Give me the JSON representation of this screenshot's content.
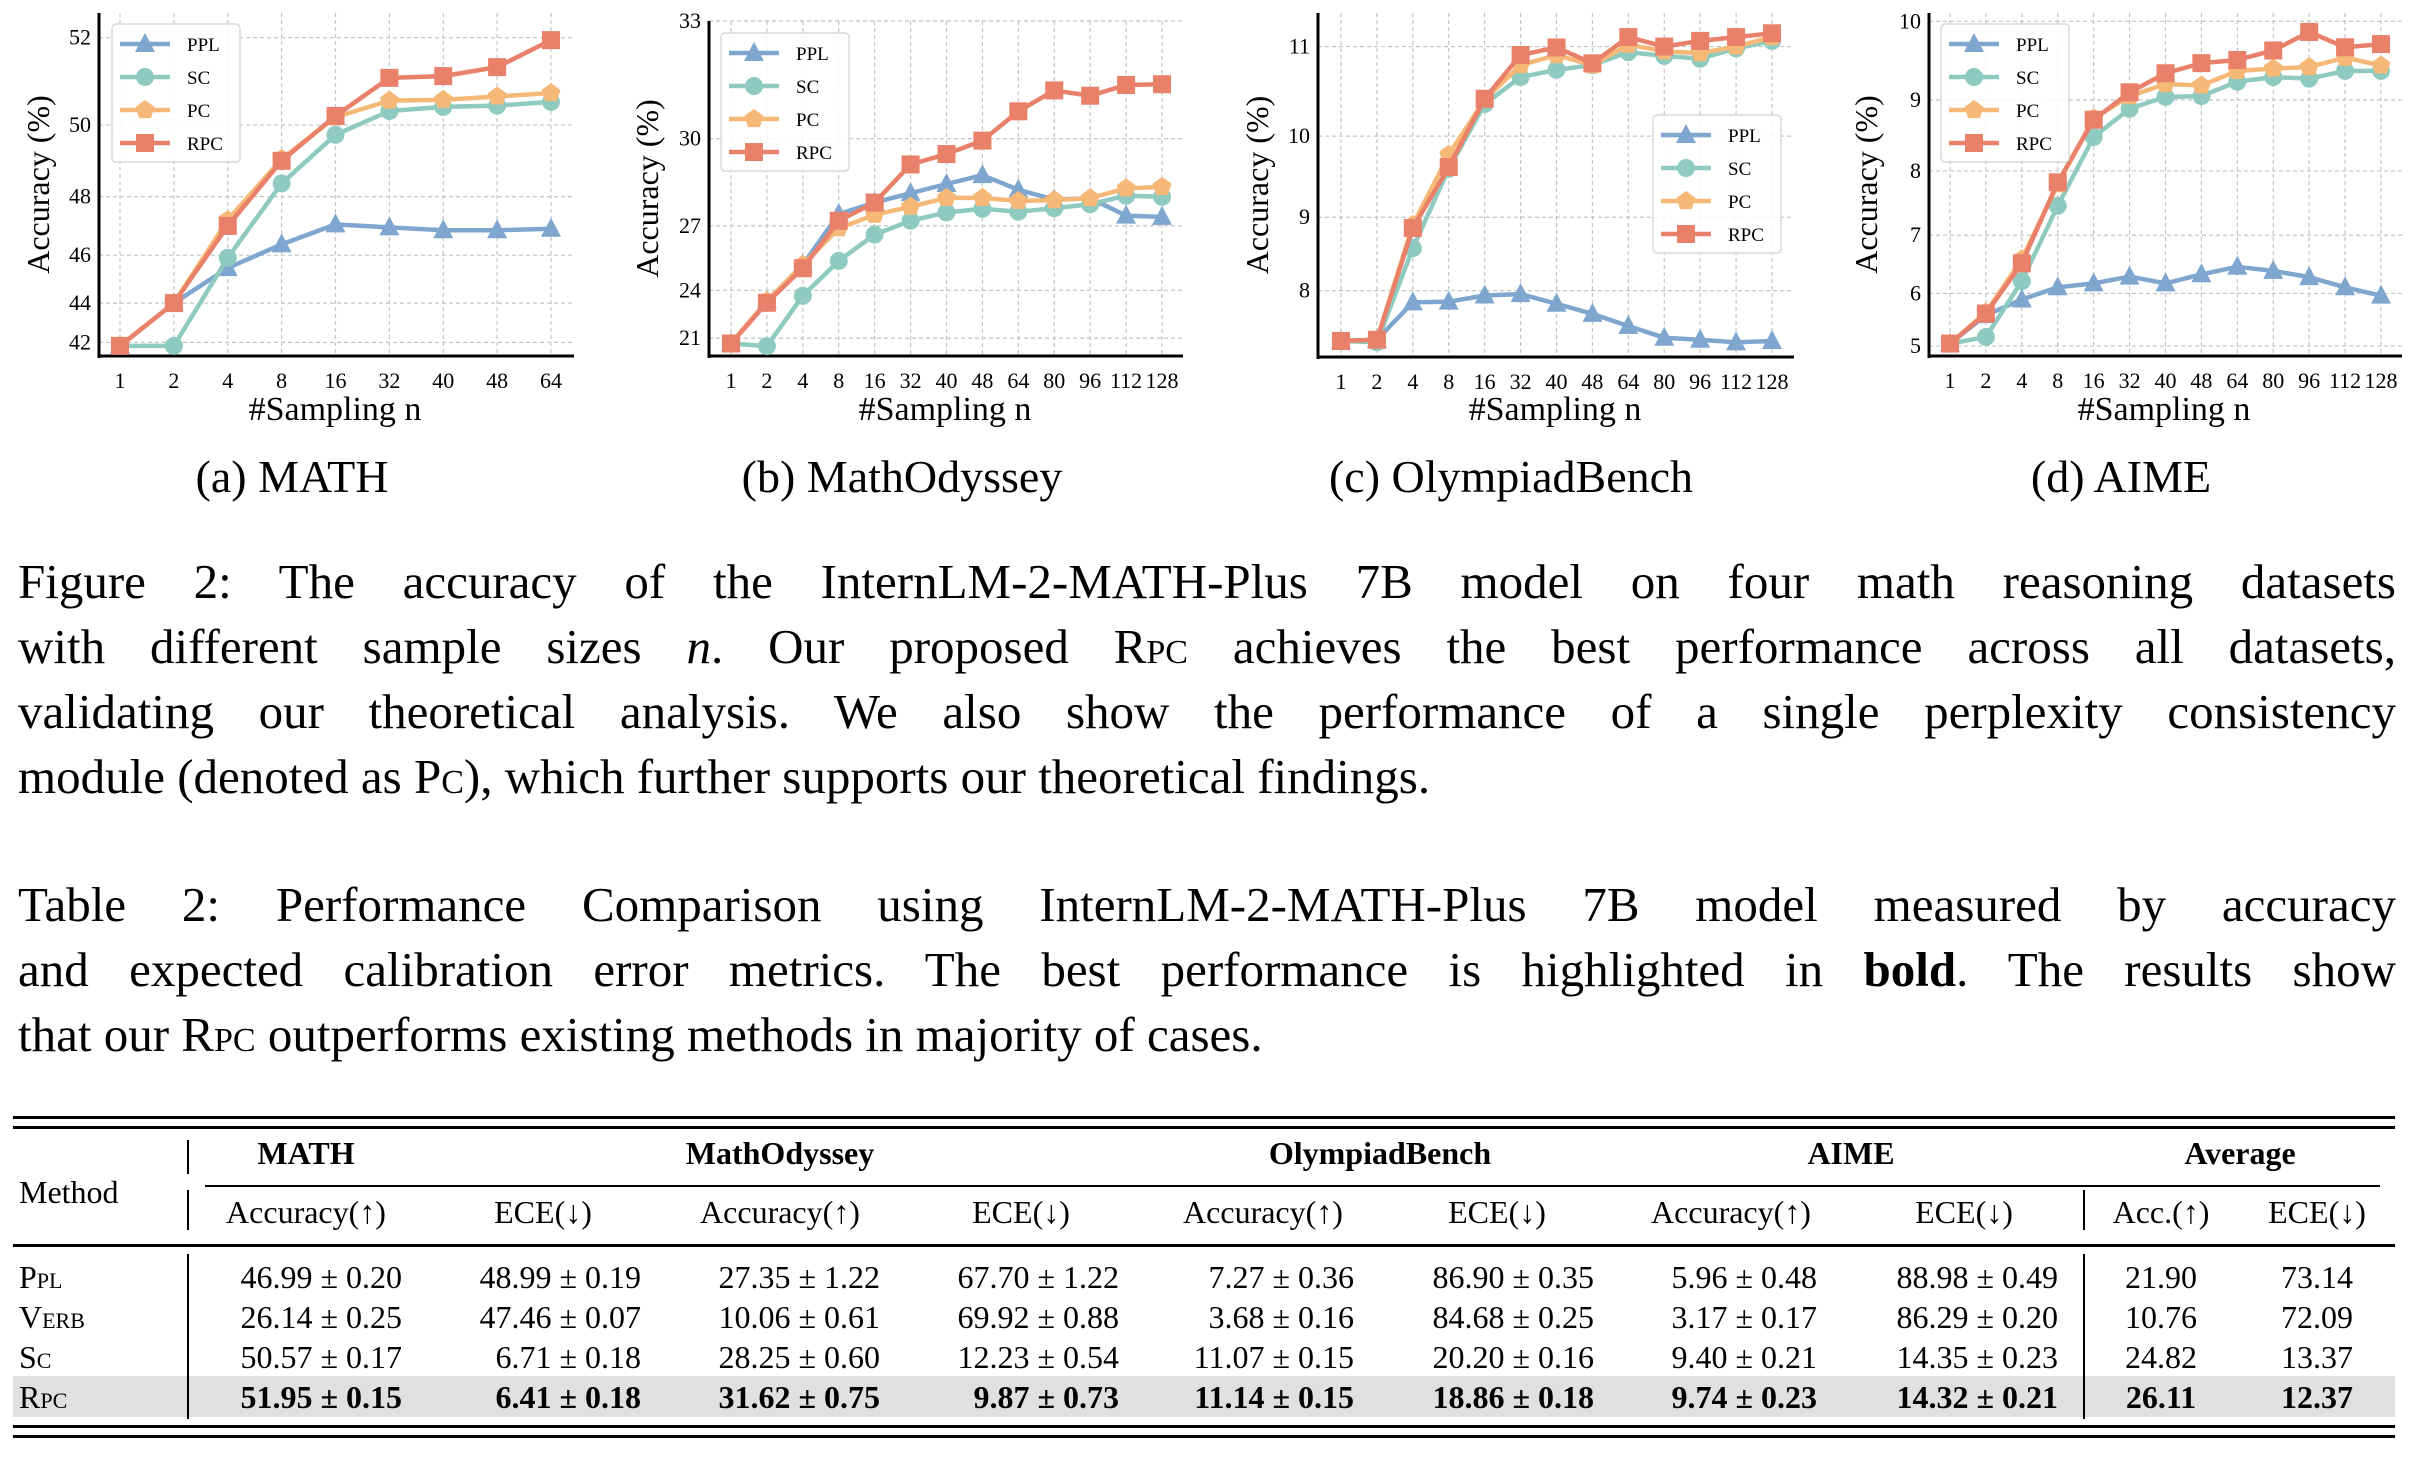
{
  "chart_data": [
    {
      "type": "line",
      "caption": "(a) MATH",
      "xlabel": "#Sampling n",
      "ylabel": "Accuracy (%)",
      "categories": [
        "1",
        "2",
        "4",
        "8",
        "16",
        "32",
        "40",
        "48",
        "64"
      ],
      "ylim": [
        41.2,
        52.5
      ],
      "yticks": [
        42,
        44,
        46,
        48,
        50,
        52
      ],
      "y_scale": "nonlinear (expanding toward top)",
      "grid": true,
      "legend": "top-left",
      "series": [
        {
          "name": "PPL",
          "marker": "triangle",
          "color": "#7fa6ce",
          "values": [
            41.8,
            44.0,
            45.5,
            46.4,
            47.1,
            47.0,
            46.9,
            46.9,
            46.95
          ]
        },
        {
          "name": "SC",
          "marker": "circle",
          "color": "#8ecac0",
          "values": [
            41.8,
            41.8,
            45.9,
            48.4,
            49.75,
            50.35,
            50.45,
            50.48,
            50.57
          ]
        },
        {
          "name": "PC",
          "marker": "pentagon",
          "color": "#f6b877",
          "values": [
            41.8,
            44.0,
            47.25,
            49.1,
            50.2,
            50.6,
            50.62,
            50.7,
            50.78
          ]
        },
        {
          "name": "RPC",
          "marker": "square",
          "color": "#e9806a",
          "values": [
            41.8,
            44.0,
            47.05,
            49.05,
            50.23,
            51.13,
            51.17,
            51.37,
            51.95
          ]
        }
      ]
    },
    {
      "type": "line",
      "caption": "(b) MathOdyssey",
      "xlabel": "#Sampling n",
      "ylabel": "Accuracy (%)",
      "categories": [
        "1",
        "2",
        "4",
        "8",
        "16",
        "32",
        "40",
        "48",
        "64",
        "80",
        "96",
        "112",
        "128"
      ],
      "ylim": [
        19.6,
        33
      ],
      "yticks": [
        21,
        24,
        27,
        30,
        33
      ],
      "y_scale": "nonlinear (expanding toward top)",
      "grid": true,
      "legend": "top-left",
      "series": [
        {
          "name": "PPL",
          "marker": "triangle",
          "color": "#7fa6ce",
          "values": [
            20.6,
            23.4,
            25.3,
            27.46,
            27.89,
            28.23,
            28.55,
            28.85,
            28.35,
            28.0,
            28.05,
            27.4,
            27.35
          ]
        },
        {
          "name": "SC",
          "marker": "circle",
          "color": "#8ecac0",
          "values": [
            20.6,
            20.4,
            23.7,
            25.48,
            26.64,
            27.2,
            27.52,
            27.66,
            27.55,
            27.68,
            27.83,
            28.14,
            28.1
          ]
        },
        {
          "name": "PC",
          "marker": "pentagon",
          "color": "#f6b877",
          "values": [
            20.6,
            23.4,
            25.3,
            26.9,
            27.43,
            27.74,
            28.06,
            28.06,
            27.95,
            27.98,
            28.05,
            28.4,
            28.45
          ]
        },
        {
          "name": "RPC",
          "marker": "square",
          "color": "#e9806a",
          "values": [
            20.6,
            23.3,
            25.13,
            27.2,
            27.89,
            29.2,
            29.53,
            29.94,
            30.78,
            31.34,
            31.2,
            31.48,
            31.5
          ]
        }
      ]
    },
    {
      "type": "line",
      "caption": "(c) OlympiadBench",
      "xlabel": "#Sampling n",
      "ylabel": "Accuracy (%)",
      "categories": [
        "1",
        "2",
        "4",
        "8",
        "16",
        "32",
        "40",
        "48",
        "64",
        "80",
        "96",
        "112",
        "128"
      ],
      "ylim": [
        7.0,
        11.35
      ],
      "yticks": [
        8,
        9,
        10,
        11
      ],
      "y_scale": "nonlinear (expanding toward top)",
      "grid": true,
      "legend": "center-right",
      "series": [
        {
          "name": "PPL",
          "marker": "triangle",
          "color": "#7fa6ce",
          "values": [
            7.25,
            7.27,
            7.83,
            7.84,
            7.93,
            7.95,
            7.81,
            7.66,
            7.48,
            7.3,
            7.27,
            7.23,
            7.25
          ]
        },
        {
          "name": "SC",
          "marker": "circle",
          "color": "#8ecac0",
          "values": [
            7.25,
            7.23,
            8.59,
            9.61,
            10.37,
            10.67,
            10.75,
            10.8,
            10.94,
            10.9,
            10.87,
            10.98,
            11.06
          ]
        },
        {
          "name": "PC",
          "marker": "pentagon",
          "color": "#f6b877",
          "values": [
            7.25,
            7.27,
            8.9,
            9.78,
            10.42,
            10.8,
            10.91,
            10.8,
            11.02,
            10.95,
            10.93,
            11.0,
            11.1
          ]
        },
        {
          "name": "RPC",
          "marker": "square",
          "color": "#e9806a",
          "values": [
            7.25,
            7.27,
            8.86,
            9.63,
            10.43,
            10.91,
            10.99,
            10.82,
            11.1,
            11.0,
            11.06,
            11.1,
            11.14
          ]
        }
      ]
    },
    {
      "type": "line",
      "caption": "(d) AIME",
      "xlabel": "#Sampling n",
      "ylabel": "Accuracy (%)",
      "categories": [
        "1",
        "2",
        "4",
        "8",
        "16",
        "32",
        "40",
        "48",
        "64",
        "80",
        "96",
        "112",
        "128"
      ],
      "ylim": [
        4.8,
        10.1
      ],
      "yticks": [
        5,
        6,
        7,
        8,
        9,
        10
      ],
      "y_scale": "nonlinear (expanding toward top)",
      "grid": true,
      "legend": "top-left",
      "series": [
        {
          "name": "PPL",
          "marker": "triangle",
          "color": "#7fa6ce",
          "values": [
            5.05,
            5.6,
            5.89,
            6.11,
            6.18,
            6.3,
            6.18,
            6.34,
            6.47,
            6.4,
            6.29,
            6.11,
            5.96
          ]
        },
        {
          "name": "SC",
          "marker": "circle",
          "color": "#8ecac0",
          "values": [
            5.05,
            5.18,
            6.22,
            7.47,
            8.49,
            8.88,
            9.04,
            9.05,
            9.24,
            9.3,
            9.28,
            9.38,
            9.38
          ]
        },
        {
          "name": "PC",
          "marker": "pentagon",
          "color": "#f6b877",
          "values": [
            5.05,
            5.65,
            6.6,
            7.8,
            8.75,
            9.05,
            9.21,
            9.19,
            9.38,
            9.41,
            9.43,
            9.55,
            9.45
          ]
        },
        {
          "name": "RPC",
          "marker": "square",
          "color": "#e9806a",
          "values": [
            5.05,
            5.63,
            6.53,
            7.83,
            8.73,
            9.1,
            9.35,
            9.48,
            9.52,
            9.64,
            9.87,
            9.68,
            9.72
          ]
        }
      ]
    }
  ],
  "figure_caption": [
    [
      {
        "t": "Figure 2: The accuracy of the InternLM-2-MATH-Plus 7B model on four math reasoning datasets"
      }
    ],
    [
      {
        "t": "with different sample sizes "
      },
      {
        "t": "n",
        "s": "it"
      },
      {
        "t": ". Our proposed "
      },
      {
        "t": "Rpc",
        "s": "sc"
      },
      {
        "t": " achieves the best performance across all datasets,"
      }
    ],
    [
      {
        "t": "validating our theoretical analysis. We also show the performance of a single perplexity consistency"
      }
    ],
    [
      {
        "t": "module (denoted as "
      },
      {
        "t": "Pc",
        "s": "sc"
      },
      {
        "t": "), which further supports our theoretical findings."
      }
    ]
  ],
  "table_caption": [
    [
      {
        "t": "Table 2: Performance Comparison using InternLM-2-MATH-Plus 7B model measured by accuracy"
      }
    ],
    [
      {
        "t": "and expected calibration error metrics. The best performance is highlighted in "
      },
      {
        "t": "bold",
        "s": "bd"
      },
      {
        "t": ". The results show"
      }
    ],
    [
      {
        "t": "that our "
      },
      {
        "t": "Rpc",
        "s": "sc"
      },
      {
        "t": " outperforms existing methods in majority of cases."
      }
    ]
  ],
  "table": {
    "method_header": "Method",
    "groups": [
      "MATH",
      "MathOdyssey",
      "OlympiadBench",
      "AIME",
      "Average"
    ],
    "subheaders": [
      "Accuracy(↑)",
      "ECE(↓)",
      "Accuracy(↑)",
      "ECE(↓)",
      "Accuracy(↑)",
      "ECE(↓)",
      "Accuracy(↑)",
      "ECE(↓)",
      "Acc.(↑)",
      "ECE(↓)"
    ],
    "highlight_color": "#e0e0e0",
    "rows": [
      {
        "method": "Ppl",
        "best": false,
        "cells": [
          "46.99 ± 0.20",
          "48.99 ± 0.19",
          "27.35 ± 1.22",
          "67.70 ± 1.22",
          "7.27 ± 0.36",
          "86.90 ± 0.35",
          "5.96 ± 0.48",
          "88.98 ± 0.49",
          "21.90",
          "73.14"
        ]
      },
      {
        "method": "Verb",
        "best": false,
        "cells": [
          "26.14 ± 0.25",
          "47.46 ± 0.07",
          "10.06 ± 0.61",
          "69.92 ± 0.88",
          "3.68 ± 0.16",
          "84.68 ± 0.25",
          "3.17 ± 0.17",
          "86.29 ± 0.20",
          "10.76",
          "72.09"
        ]
      },
      {
        "method": "Sc",
        "best": false,
        "cells": [
          "50.57 ± 0.17",
          "6.71 ± 0.18",
          "28.25 ± 0.60",
          "12.23 ± 0.54",
          "11.07 ± 0.15",
          "20.20 ± 0.16",
          "9.40 ± 0.21",
          "14.35 ± 0.23",
          "24.82",
          "13.37"
        ]
      },
      {
        "method": "Rpc",
        "best": true,
        "cells": [
          "51.95 ± 0.15",
          "6.41 ± 0.18",
          "31.62 ± 0.75",
          "9.87 ± 0.73",
          "11.14 ± 0.15",
          "18.86 ± 0.18",
          "9.74 ± 0.23",
          "14.32 ± 0.21",
          "26.11",
          "12.37"
        ]
      }
    ]
  }
}
